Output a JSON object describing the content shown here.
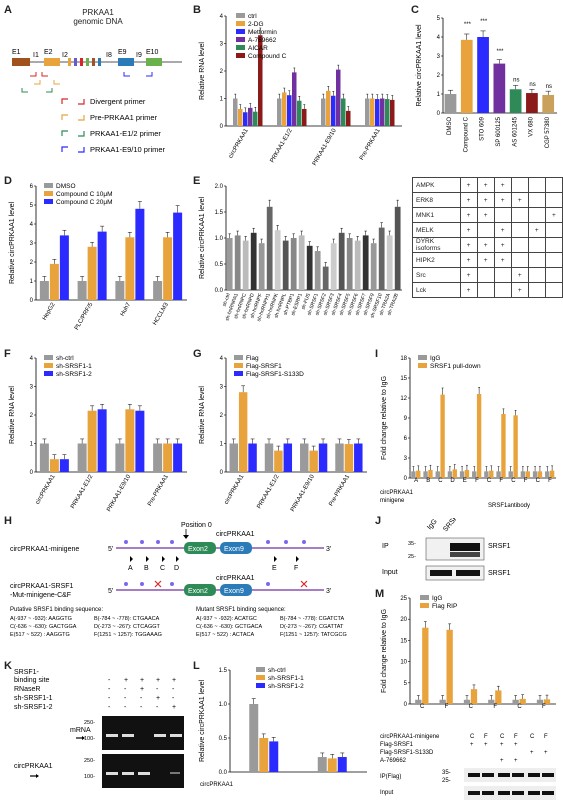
{
  "colors": {
    "gray": "#9a9a9a",
    "orange": "#e8a33d",
    "blue": "#2b2bff",
    "purple": "#7030a0",
    "green": "#2e8b57",
    "darkred": "#8b1a1a",
    "red": "#d62728",
    "grn2": "#6ab04c"
  },
  "panels": {
    "A": "A",
    "B": "B",
    "C": "C",
    "D": "D",
    "E": "E",
    "F": "F",
    "G": "G",
    "H": "H",
    "I": "I",
    "J": "J",
    "K": "K",
    "L": "L",
    "M": "M"
  },
  "panelA": {
    "title1": "PRKAA1",
    "title2": "genomic DNA",
    "exons": [
      "E1",
      "E2",
      "E9",
      "E10"
    ],
    "introns": [
      "I1",
      "I2",
      "I8",
      "I9"
    ],
    "legend": [
      "Divergent  primer",
      "Pre-PRKAA1 primer",
      "PRKAA1-E1/2 primer",
      "PRKAA1-E9/10 primer"
    ]
  },
  "chart_data": [
    {
      "panel": "B",
      "type": "bar",
      "ylabel": "Relative RNA level",
      "ylim": [
        0,
        4
      ],
      "yticks": [
        "0",
        "1",
        "2",
        "3",
        "4"
      ],
      "categories": [
        "circPRKAA1",
        "PRKAA1-E1/2",
        "PRKAA1-E9/10",
        "Pre-PRKAA1"
      ],
      "series": [
        {
          "name": "ctrl",
          "values": [
            1,
            1,
            1,
            1
          ]
        },
        {
          "name": "2-DG",
          "values": [
            0.62,
            1.22,
            1.28,
            1.0
          ]
        },
        {
          "name": "Metformin",
          "values": [
            0.5,
            1.12,
            1.1,
            0.98
          ]
        },
        {
          "name": "A-769662",
          "values": [
            0.66,
            1.95,
            2.05,
            1.0
          ]
        },
        {
          "name": "AICAR",
          "values": [
            0.52,
            0.92,
            1.0,
            0.98
          ]
        },
        {
          "name": "Compound C",
          "values": [
            3.3,
            0.62,
            0.55,
            0.95
          ]
        }
      ]
    },
    {
      "panel": "C",
      "type": "bar",
      "ylabel": "Relative circPRKAA1 level",
      "ylim": [
        0,
        5
      ],
      "yticks": [
        "0",
        "1",
        "2",
        "3",
        "4",
        "5"
      ],
      "categories": [
        "DMSO",
        "Compound C",
        "STO 609",
        "SP 600125",
        "AS 601245",
        "VX 680",
        "CGP 57380"
      ],
      "values": [
        1.0,
        3.85,
        4.0,
        2.6,
        1.25,
        1.05,
        0.95
      ],
      "sig": [
        "",
        "***",
        "***",
        "***",
        "ns",
        "ns",
        "ns"
      ]
    },
    {
      "panel": "D",
      "type": "bar",
      "ylabel": "Relative circPRKAA1 level",
      "ylim": [
        0,
        6
      ],
      "yticks": [
        "0",
        "1",
        "2",
        "3",
        "4",
        "5",
        "6"
      ],
      "categories": [
        "HepG2",
        "PLC/PRF/5",
        "Huh7",
        "HCCLM3"
      ],
      "series": [
        {
          "name": "DMSO",
          "values": [
            1,
            1,
            1,
            1
          ]
        },
        {
          "name": "Compound C 10μM",
          "values": [
            1.9,
            2.8,
            3.3,
            3.3
          ]
        },
        {
          "name": "Compound C 20μM",
          "values": [
            3.4,
            3.6,
            4.8,
            4.6
          ]
        }
      ]
    },
    {
      "panel": "E",
      "type": "bar",
      "ylabel": "Relative circPRKAA1 level",
      "ylim": [
        0,
        2.0
      ],
      "yticks": [
        "0.0",
        "0.5",
        "1.0",
        "1.5",
        "2.0"
      ],
      "categories": [
        "sh-ctrl",
        "sh-hnRNPA1",
        "sh-hnRNPC",
        "sh-hnRNPD",
        "sh-hnRNPF",
        "sh-hnRNPH1",
        "sh-hnRNPK",
        "sh-hnRNPL",
        "sh-PTBP1",
        "sh-ESRP1",
        "sh-FUS",
        "sh-SRSF1",
        "sh-SRSF2",
        "sh-SRSF3",
        "sh-SRSF4",
        "sh-SRSF5",
        "sh-SRSF6",
        "sh-SRSF7",
        "sh-SRSF9",
        "sh-SRSF10",
        "sh-TRA2A",
        "sh-TRA2B"
      ],
      "values": [
        1.0,
        1.05,
        0.95,
        1.1,
        0.9,
        1.6,
        1.15,
        0.95,
        1.0,
        1.05,
        0.85,
        0.75,
        0.45,
        0.9,
        1.1,
        1.0,
        0.95,
        1.05,
        0.9,
        1.2,
        1.05,
        1.6
      ]
    },
    {
      "panel": "F",
      "type": "bar",
      "ylabel": "Relative RNA level",
      "ylim": [
        0,
        4
      ],
      "yticks": [
        "0",
        "1",
        "2",
        "3",
        "4"
      ],
      "categories": [
        "circPRKAA1",
        "PRKAA1-E1/2",
        "PRKAA1-E9/10",
        "Pre-PRKAA1"
      ],
      "series": [
        {
          "name": "sh-ctrl",
          "values": [
            1,
            1,
            1,
            1
          ]
        },
        {
          "name": "sh-SRSF1-1",
          "values": [
            0.45,
            2.15,
            2.2,
            1.0
          ]
        },
        {
          "name": "sh-SRSF1-2",
          "values": [
            0.45,
            2.2,
            2.15,
            1.0
          ]
        }
      ]
    },
    {
      "panel": "G",
      "type": "bar",
      "ylabel": "Relative RNA level",
      "ylim": [
        0,
        4
      ],
      "yticks": [
        "0",
        "1",
        "2",
        "3",
        "4"
      ],
      "categories": [
        "circPRKAA1",
        "PRKAA1-E1/2",
        "PRKAA1-E9/10",
        "Pre-PRKAA1"
      ],
      "series": [
        {
          "name": "Flag",
          "values": [
            1,
            1,
            1,
            1
          ]
        },
        {
          "name": "Flag-SRSF1",
          "values": [
            2.8,
            0.75,
            0.75,
            0.98
          ]
        },
        {
          "name": "Flag-SRSF1-S133D",
          "values": [
            1,
            1,
            1,
            1
          ]
        }
      ]
    },
    {
      "panel": "I",
      "type": "bar",
      "ylabel": "Fold change relative to IgG",
      "ylim": [
        0,
        18
      ],
      "yticks": [
        "0",
        "3",
        "6",
        "9",
        "12",
        "15",
        "18"
      ],
      "categories": [
        "A",
        "B",
        "C",
        "D",
        "E",
        "F",
        "C",
        "F",
        "C",
        "F",
        "C",
        "F"
      ],
      "series": [
        {
          "name": "IgG",
          "values": [
            1,
            1,
            1,
            1,
            1,
            1,
            1,
            1,
            1,
            1,
            1,
            1
          ]
        },
        {
          "name": "SRSF1 pull-down",
          "values": [
            1.1,
            1.2,
            12.5,
            1.3,
            1.2,
            12.6,
            1.1,
            9.6,
            9.4,
            1.0,
            1.0,
            1.1
          ]
        }
      ]
    },
    {
      "panel": "L",
      "type": "bar",
      "ylabel": "Relative circPRKAA1 level",
      "ylim": [
        0,
        1.5
      ],
      "yticks": [
        "0.0",
        "0.5",
        "1.0",
        "1.5"
      ],
      "categories": [
        "wt",
        "mut"
      ],
      "series": [
        {
          "name": "sh-ctrl",
          "values": [
            1.0,
            0.22
          ]
        },
        {
          "name": "sh-SRSF1-1",
          "values": [
            0.5,
            0.2
          ]
        },
        {
          "name": "sh-SRSF1-2",
          "values": [
            0.45,
            0.22
          ]
        }
      ]
    },
    {
      "panel": "M",
      "type": "bar",
      "ylabel": "Fold change relative to IgG",
      "ylim": [
        0,
        25
      ],
      "yticks": [
        "0",
        "5",
        "10",
        "15",
        "20",
        "25"
      ],
      "categories": [
        "C",
        "F",
        "C",
        "F",
        "C",
        "F"
      ],
      "series": [
        {
          "name": "IgG",
          "values": [
            1,
            1,
            1,
            1,
            1,
            1
          ]
        },
        {
          "name": "Flag RIP",
          "values": [
            18,
            17.5,
            3.5,
            3.2,
            1.2,
            1.1
          ]
        }
      ]
    }
  ],
  "panelC_table": {
    "rows": [
      "AMPK",
      "ERK8",
      "MNK1",
      "MELK",
      "DYRK isoforms",
      "HIPK2",
      "Src",
      "Lck"
    ],
    "cells": [
      [
        "+",
        "+",
        "+",
        "",
        "",
        ""
      ],
      [
        "+",
        "+",
        "+",
        "+",
        "",
        ""
      ],
      [
        "+",
        "+",
        "",
        "",
        "",
        "+"
      ],
      [
        "+",
        "",
        "+",
        "",
        "+",
        ""
      ],
      [
        "+",
        "+",
        "+",
        "",
        "",
        ""
      ],
      [
        "+",
        "+",
        "+",
        "",
        "",
        ""
      ],
      [
        "+",
        "",
        "",
        "+",
        "",
        ""
      ],
      [
        "+",
        "",
        "",
        "+",
        "",
        ""
      ]
    ]
  },
  "panelH": {
    "line1": "circPRKAA1-minigene",
    "pos": "Position 0",
    "circ": "circPRKAA1",
    "exon2": "Exon2",
    "exon9": "Exon9",
    "sites": [
      "A",
      "B",
      "C",
      "D",
      "E",
      "F"
    ],
    "line2a": "circPRKAA1-SRSF1",
    "line2b": "-Mut-minigene-C&F",
    "circ2": "circPRKAA1",
    "putative_title": "Putative SRSF1 binding sequence:",
    "mutant_title": "Mutant SRSF1 binding sequence:",
    "putative": [
      "A(-937 ~ -932): AAGGTG",
      "B(-784 ~ -778): CTGAACA",
      "C(-636 ~ -630): GACTGGA",
      "D(-273 ~ -267): CTCAGGT",
      "E(517 ~ 522) : AAGGTG",
      "F(1251 ~ 1257): TGGAAAG"
    ],
    "mutant": [
      "A(-937 ~ -932): ACATGC",
      "B(-784 ~ -778): CGATCTA",
      "C(-636 ~ -630): GCTGACA",
      "D(-273 ~ -267): CGATTAT",
      "E(517 ~ 522) : ACTACA",
      "F(1251 ~ 1257): TATCGCG"
    ],
    "five": "5'",
    "three": "3'"
  },
  "panelJ": {
    "ip": "IP",
    "input": "Input",
    "igg": "IgG",
    "ab": "SRSF1antibody",
    "band": "SRSF1",
    "mw": [
      "35-",
      "25-",
      "35-",
      "25-"
    ]
  },
  "panelK": {
    "rows": [
      "SRSF1-",
      "binding site",
      "RNaseR",
      "sh-SRSF1-1",
      "sh-SRSF1-2"
    ],
    "r1": [
      "-",
      "+",
      "+",
      "+",
      "+"
    ],
    "r2": [
      "-",
      "-",
      "+",
      "-",
      "-"
    ],
    "r3": [
      "-",
      "-",
      "-",
      "+",
      "-"
    ],
    "r4": [
      "-",
      "-",
      "-",
      "-",
      "+"
    ],
    "mrna": "mRNA",
    "circ": "circPRKAA1",
    "mw1": [
      "250-",
      "100-"
    ],
    "mw2": [
      "250-",
      "100-"
    ]
  },
  "panelI_extra": {
    "xlabel1": "circPRKAA1",
    "xlabel2": "minigene",
    "antibody": "SRSF1antibody"
  },
  "panelL_extra": {
    "xlabel": "circPRKAA1"
  },
  "panelM_extra": {
    "rows": [
      "circPRKAA1-minigene",
      "Flag-SRSF1",
      "Flag-SRSF1-S133D",
      "A-769662"
    ],
    "minigene": [
      "C",
      "F",
      "C",
      "F",
      "C",
      "F"
    ],
    "flag": [
      "+",
      "+",
      "+",
      "+",
      "",
      ""
    ],
    "s133d": [
      "",
      "",
      "",
      "",
      "+",
      "+"
    ],
    "a76": [
      "",
      "",
      "+",
      "+",
      "",
      ""
    ],
    "blot1": "IP(Flag)",
    "blot2": "Input",
    "mw": [
      "35-",
      "25-",
      "35-",
      "25-"
    ]
  }
}
